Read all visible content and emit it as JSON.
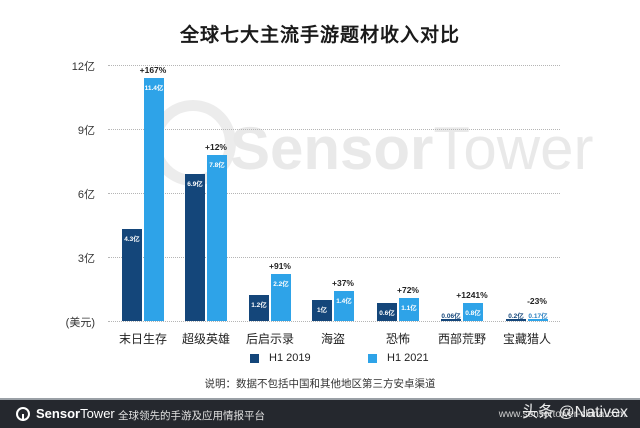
{
  "chart_data": {
    "type": "bar",
    "title": "全球七大主流手游题材收入对比",
    "xlabel": "",
    "ylabel": "(美元)",
    "unit": "亿",
    "ylim": [
      0,
      12
    ],
    "yticks": [
      {
        "value": 12,
        "label": "12亿"
      },
      {
        "value": 9,
        "label": "9亿"
      },
      {
        "value": 6,
        "label": "6亿"
      },
      {
        "value": 3,
        "label": "3亿"
      },
      {
        "value": 0,
        "label": "(美元)"
      }
    ],
    "grid": true,
    "legend_position": "bottom",
    "categories": [
      "末日生存",
      "超级英雄",
      "后启示录",
      "海盗",
      "恐怖",
      "西部荒野",
      "宝藏猎人"
    ],
    "series": [
      {
        "name": "H1 2019",
        "color": "#14467a",
        "values": [
          4.3,
          6.9,
          1.2,
          1.0,
          0.6,
          0.06,
          0.2
        ],
        "labels": [
          "4.3亿",
          "6.9亿",
          "1.2亿",
          "1亿",
          "0.6亿",
          "0.06亿",
          "0.2亿"
        ]
      },
      {
        "name": "H1 2021",
        "color": "#2ea3e8",
        "values": [
          11.4,
          7.8,
          2.2,
          1.4,
          1.1,
          0.8,
          0.17
        ],
        "labels": [
          "11.4亿",
          "7.8亿",
          "2.2亿",
          "1.4亿",
          "1.1亿",
          "0.8亿",
          "0.17亿"
        ]
      }
    ],
    "growth": [
      "+167%",
      "+12%",
      "+91%",
      "+37%",
      "+72%",
      "+1241%",
      "-23%"
    ],
    "note": "说明：数据不包括中国和其他地区第三方安卓渠道"
  },
  "watermark": {
    "bold": "Sensor",
    "light": "Tower"
  },
  "footer": {
    "brand_bold": "Sensor",
    "brand_light": "Tower",
    "tagline": "全球领先的手游及应用情报平台",
    "url": "www.sensortower-china.com",
    "credit": "头条 @Nativex"
  }
}
